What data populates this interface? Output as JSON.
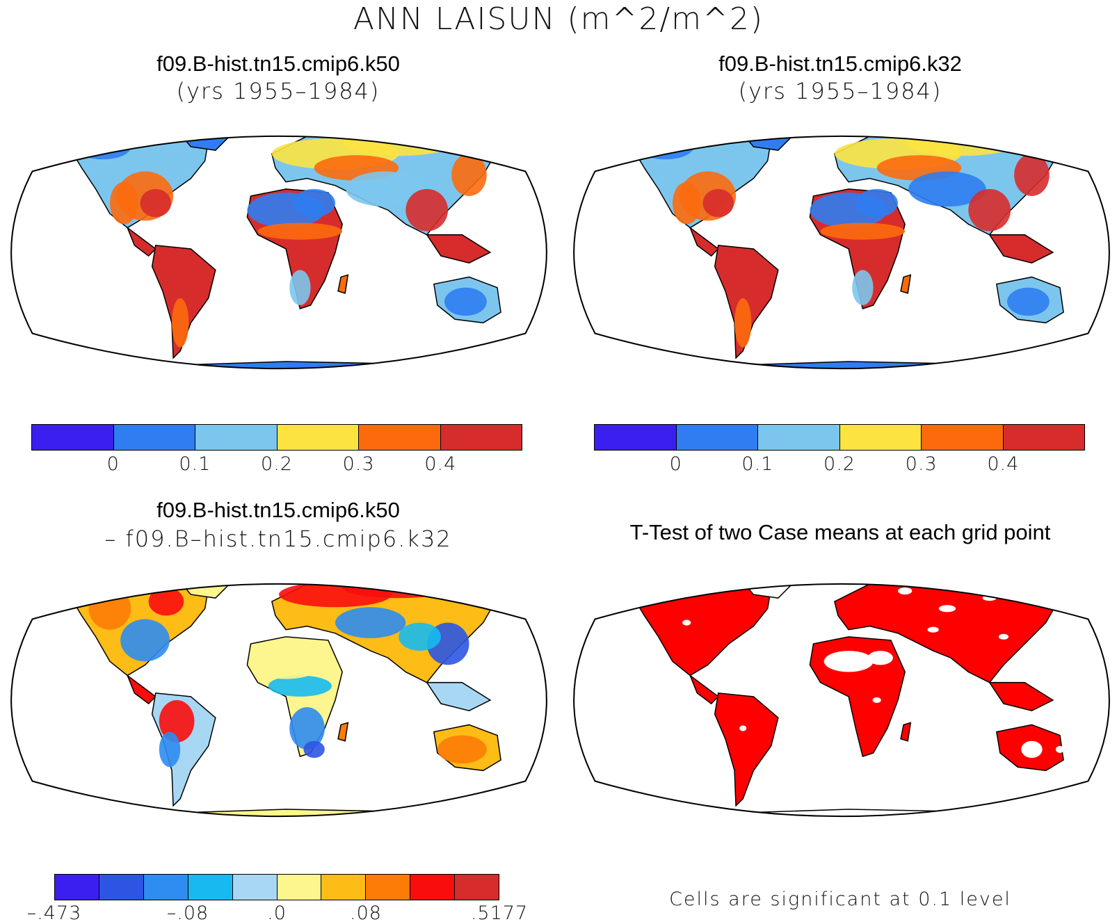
{
  "figure": {
    "title": "ANN LAISUN (m^2/m^2)"
  },
  "panels": {
    "top_left": {
      "title": "f09.B-hist.tn15.cmip6.k50",
      "subtitle": "(yrs 1955–1984)"
    },
    "top_right": {
      "title": "f09.B-hist.tn15.cmip6.k32",
      "subtitle": "(yrs 1955–1984)"
    },
    "bottom_left": {
      "title": "f09.B-hist.tn15.cmip6.k50",
      "subtitle": "– f09.B–hist.tn15.cmip6.k32"
    },
    "bottom_right": {
      "title": "T-Test of two Case means at each grid point",
      "note": "Cells are significant at 0.1 level"
    }
  },
  "colorbars": {
    "case": {
      "colors": [
        "#3b1ff0",
        "#2f7df0",
        "#7cc6ee",
        "#fce340",
        "#fc6a0d",
        "#d72c2c"
      ],
      "tick_labels": [
        "0",
        "0.1",
        "0.2",
        "0.3",
        "0.4"
      ]
    },
    "diff": {
      "colors": [
        "#3b1ff0",
        "#2c55e3",
        "#2f8cf0",
        "#17baf0",
        "#a8d7f3",
        "#fdf58e",
        "#fdbc16",
        "#fd7c07",
        "#f90d0d",
        "#d72c2c"
      ],
      "tick_labels": [
        ".473",
        "–.08",
        ".0",
        ".08",
        ".5177"
      ]
    }
  },
  "ttest": {
    "significant_color": "#ff0000"
  },
  "map_colors": {
    "outline": "#000000",
    "ocean": "#ffffff"
  }
}
